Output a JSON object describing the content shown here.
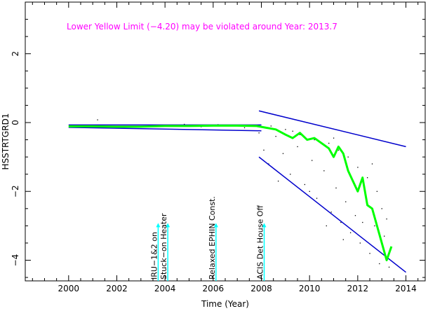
{
  "chart_data": {
    "type": "line",
    "title": "",
    "annotation": "Lower Yellow  Limit (−4.20) may be violated around Year: 2013.7",
    "xlabel": "Time (Year)",
    "ylabel": "HSSTRTGRD1",
    "xlim": [
      1998.2,
      2014.8
    ],
    "ylim": [
      -4.6,
      3.5
    ],
    "xticks": [
      2000,
      2002,
      2004,
      2006,
      2008,
      2010,
      2012,
      2014
    ],
    "yticks": [
      -4,
      -2,
      0,
      2
    ],
    "ytick_labels": [
      "−4",
      "−2",
      "0",
      "2"
    ],
    "grid": false,
    "colors": {
      "envelope": "#0000cc",
      "trend": "#00ff00",
      "events": "#00ffff",
      "annotation": "#ff00ff",
      "points": "#000000"
    },
    "events": [
      {
        "x": 2003.6,
        "label": "IRU−1&2 on"
      },
      {
        "x": 2004.0,
        "label": "Stuck−on Heater"
      },
      {
        "x": 2006.0,
        "label": "Relaxed EPHIN Const."
      },
      {
        "x": 2008.0,
        "label": "ACIS Det House Off"
      }
    ],
    "envelope_lines": [
      {
        "x": [
          2000.0,
          2008.0
        ],
        "y": [
          -0.07,
          -0.07
        ]
      },
      {
        "x": [
          2000.0,
          2008.0
        ],
        "y": [
          -0.14,
          -0.24
        ]
      },
      {
        "x": [
          2007.9,
          2014.0
        ],
        "y": [
          0.34,
          -0.7
        ]
      },
      {
        "x": [
          2007.9,
          2014.0
        ],
        "y": [
          -1.0,
          -4.35
        ]
      }
    ],
    "trend": {
      "x": [
        2000.0,
        2001.0,
        2002.0,
        2003.0,
        2004.0,
        2005.0,
        2006.0,
        2007.0,
        2007.8,
        2008.2,
        2008.6,
        2009.0,
        2009.3,
        2009.6,
        2009.9,
        2010.2,
        2010.5,
        2010.8,
        2011.0,
        2011.2,
        2011.4,
        2011.6,
        2011.8,
        2012.0,
        2012.2,
        2012.4,
        2012.6,
        2012.8,
        2013.0,
        2013.2,
        2013.4
      ],
      "y": [
        -0.11,
        -0.11,
        -0.12,
        -0.12,
        -0.1,
        -0.1,
        -0.09,
        -0.09,
        -0.1,
        -0.15,
        -0.2,
        -0.35,
        -0.45,
        -0.3,
        -0.5,
        -0.45,
        -0.6,
        -0.75,
        -1.0,
        -0.7,
        -0.9,
        -1.4,
        -1.7,
        -2.0,
        -1.6,
        -2.4,
        -2.5,
        -3.0,
        -3.5,
        -4.0,
        -3.6
      ]
    },
    "scatter": {
      "x": [
        2001.2,
        2003.4,
        2004.8,
        2005.5,
        2006.2,
        2007.3,
        2007.9,
        2008.1,
        2008.3,
        2008.6,
        2008.9,
        2009.2,
        2009.5,
        2009.8,
        2010.1,
        2010.3,
        2010.6,
        2010.9,
        2011.1,
        2011.3,
        2011.5,
        2011.7,
        2011.9,
        2012.1,
        2012.3,
        2012.5,
        2012.7,
        2012.9,
        2013.1,
        2013.3,
        2009.0,
        2009.6,
        2010.2,
        2010.8,
        2011.2,
        2011.6,
        2012.0,
        2012.4,
        2012.8,
        2013.2,
        2008.4,
        2009.3,
        2010.0,
        2010.7,
        2011.4,
        2012.2,
        2012.6,
        2013.0,
        2008.7,
        2011.0
      ],
      "y": [
        0.08,
        -0.08,
        -0.05,
        -0.12,
        -0.06,
        -0.15,
        -0.3,
        -0.8,
        -1.2,
        -0.4,
        -0.9,
        -1.5,
        -0.7,
        -1.8,
        -1.1,
        -2.2,
        -1.4,
        -2.6,
        -1.9,
        -2.9,
        -2.3,
        -3.2,
        -2.7,
        -3.5,
        -2.1,
        -3.8,
        -3.0,
        -4.1,
        -3.3,
        -4.2,
        -0.2,
        -0.35,
        -0.5,
        -0.6,
        -0.8,
        -1.0,
        -1.3,
        -1.6,
        -2.0,
        -2.8,
        -0.1,
        -0.25,
        -2.0,
        -3.0,
        -3.4,
        -2.9,
        -1.2,
        -2.5,
        -1.7,
        -0.45
      ]
    }
  }
}
